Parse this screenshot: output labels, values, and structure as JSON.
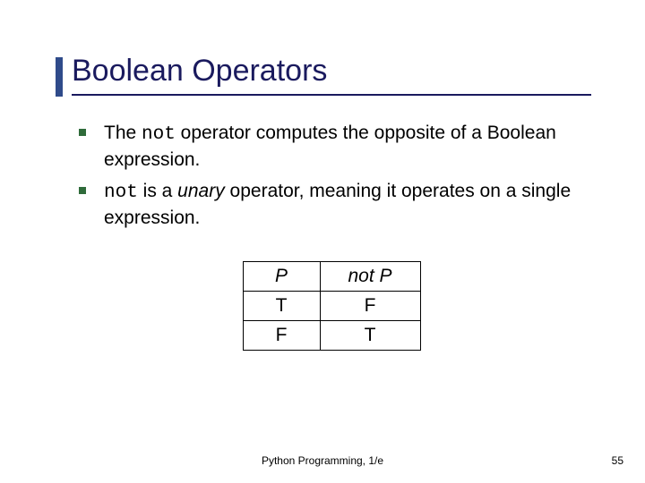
{
  "title": "Boolean Operators",
  "bullets": {
    "b1_pre": "The ",
    "b1_code": "not",
    "b1_post": " operator computes the opposite of a Boolean expression.",
    "b2_code": "not",
    "b2_mid": " is a ",
    "b2_ital": "unary",
    "b2_post": " operator, meaning it operates on a single expression."
  },
  "table": {
    "h1": "P",
    "h2": "not P",
    "r1c1": "T",
    "r1c2": "F",
    "r2c1": "F",
    "r2c2": "T"
  },
  "footer": "Python Programming, 1/e",
  "page": "55",
  "colors": {
    "title_color": "#1a1a5e",
    "accent_bar": "#2f4b8a",
    "bullet_marker": "#2f6b3a",
    "border": "#000000",
    "background": "#ffffff"
  }
}
